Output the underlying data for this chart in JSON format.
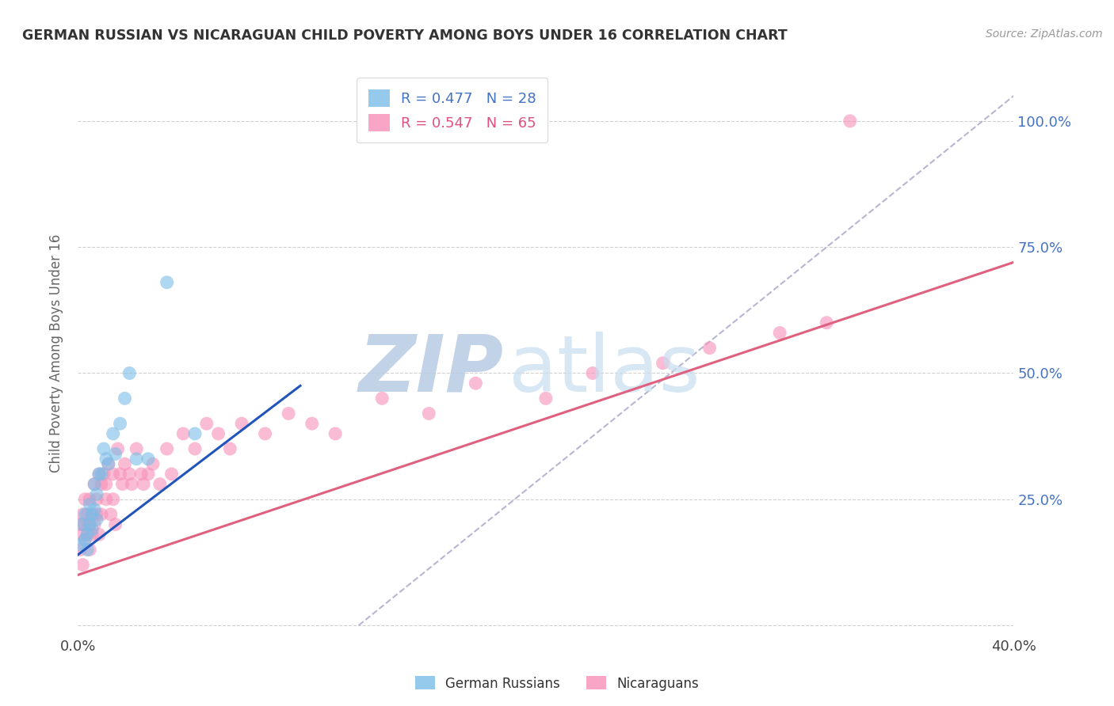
{
  "title": "GERMAN RUSSIAN VS NICARAGUAN CHILD POVERTY AMONG BOYS UNDER 16 CORRELATION CHART",
  "source": "Source: ZipAtlas.com",
  "ylabel": "Child Poverty Among Boys Under 16",
  "xlim": [
    0.0,
    0.4
  ],
  "ylim": [
    -0.02,
    1.1
  ],
  "xtick_pos": [
    0.0,
    0.05,
    0.1,
    0.15,
    0.2,
    0.25,
    0.3,
    0.35,
    0.4
  ],
  "xticklabels": [
    "0.0%",
    "",
    "",
    "",
    "",
    "",
    "",
    "",
    "40.0%"
  ],
  "ytick_positions": [
    0.0,
    0.25,
    0.5,
    0.75,
    1.0
  ],
  "yticklabels_right": [
    "",
    "25.0%",
    "50.0%",
    "75.0%",
    "100.0%"
  ],
  "german_russian_color": "#7bbde8",
  "nicaraguan_color": "#f890b8",
  "watermark_zip_color": "#c5d8ee",
  "watermark_atlas_color": "#b8d0ea",
  "background_color": "#ffffff",
  "grid_color": "#cccccc",
  "title_color": "#333333",
  "axis_label_color": "#666666",
  "right_tick_color": "#4472c4",
  "blue_line_color": "#2255bb",
  "pink_line_color": "#e06080",
  "diag_line_color": "#aaaacc",
  "blue_line_x0": 0.0,
  "blue_line_y0": 0.14,
  "blue_line_x1": 0.095,
  "blue_line_y1": 0.475,
  "pink_line_x0": 0.0,
  "pink_line_y0": 0.1,
  "pink_line_x1": 0.4,
  "pink_line_y1": 0.72,
  "diag_line_x0": 0.12,
  "diag_line_y0": 0.0,
  "diag_line_x1": 0.4,
  "diag_line_y1": 1.05,
  "gr_x": [
    0.001,
    0.002,
    0.003,
    0.003,
    0.004,
    0.004,
    0.005,
    0.005,
    0.006,
    0.006,
    0.007,
    0.007,
    0.008,
    0.008,
    0.009,
    0.01,
    0.011,
    0.012,
    0.013,
    0.015,
    0.016,
    0.018,
    0.02,
    0.022,
    0.025,
    0.03,
    0.038,
    0.05
  ],
  "gr_y": [
    0.16,
    0.2,
    0.17,
    0.22,
    0.18,
    0.15,
    0.2,
    0.24,
    0.22,
    0.19,
    0.28,
    0.23,
    0.21,
    0.26,
    0.3,
    0.3,
    0.35,
    0.33,
    0.32,
    0.38,
    0.34,
    0.4,
    0.45,
    0.5,
    0.33,
    0.33,
    0.68,
    0.38
  ],
  "nic_x": [
    0.001,
    0.001,
    0.002,
    0.002,
    0.002,
    0.003,
    0.003,
    0.003,
    0.004,
    0.004,
    0.005,
    0.005,
    0.005,
    0.006,
    0.006,
    0.007,
    0.007,
    0.008,
    0.008,
    0.009,
    0.009,
    0.01,
    0.01,
    0.011,
    0.012,
    0.012,
    0.013,
    0.014,
    0.015,
    0.015,
    0.016,
    0.017,
    0.018,
    0.019,
    0.02,
    0.022,
    0.023,
    0.025,
    0.027,
    0.028,
    0.03,
    0.032,
    0.035,
    0.038,
    0.04,
    0.045,
    0.05,
    0.055,
    0.06,
    0.065,
    0.07,
    0.08,
    0.09,
    0.1,
    0.11,
    0.13,
    0.15,
    0.17,
    0.2,
    0.22,
    0.25,
    0.27,
    0.3,
    0.32,
    0.33
  ],
  "nic_y": [
    0.15,
    0.2,
    0.12,
    0.18,
    0.22,
    0.17,
    0.2,
    0.25,
    0.18,
    0.22,
    0.15,
    0.2,
    0.25,
    0.18,
    0.22,
    0.2,
    0.28,
    0.22,
    0.25,
    0.18,
    0.3,
    0.22,
    0.28,
    0.3,
    0.25,
    0.28,
    0.32,
    0.22,
    0.25,
    0.3,
    0.2,
    0.35,
    0.3,
    0.28,
    0.32,
    0.3,
    0.28,
    0.35,
    0.3,
    0.28,
    0.3,
    0.32,
    0.28,
    0.35,
    0.3,
    0.38,
    0.35,
    0.4,
    0.38,
    0.35,
    0.4,
    0.38,
    0.42,
    0.4,
    0.38,
    0.45,
    0.42,
    0.48,
    0.45,
    0.5,
    0.52,
    0.55,
    0.58,
    0.6,
    1.0
  ]
}
